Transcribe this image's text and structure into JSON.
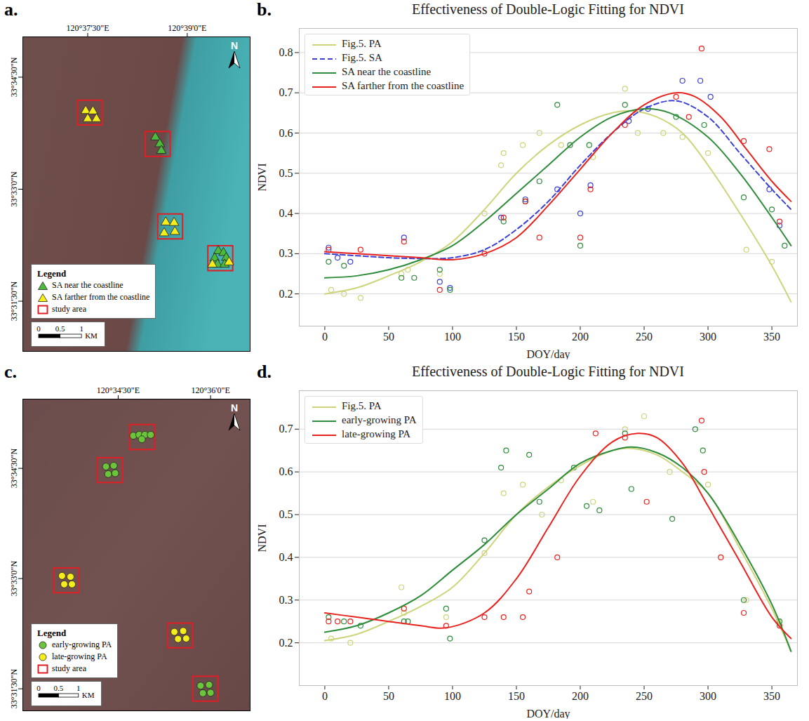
{
  "chart_data": [
    {
      "type": "map",
      "letter": "a.",
      "xlim": [
        120.6087,
        120.6658
      ],
      "ylim": [
        33.5138,
        33.584
      ],
      "xticks": [
        {
          "value": 120.625,
          "label": "120°37'30\"E"
        },
        {
          "value": 120.65,
          "label": "120°39'0\"E"
        }
      ],
      "yticks": [
        {
          "value": 33.525,
          "label": "33°31'30\"N"
        },
        {
          "value": 33.55,
          "label": "33°33'0\"N"
        },
        {
          "value": 33.575,
          "label": "33°34'30\"N"
        }
      ],
      "north": "N",
      "scale_bar": {
        "values": [
          0,
          0.5,
          1
        ],
        "unit": "KM"
      },
      "legend_title": "Legend",
      "legend": "lower left",
      "series": [
        {
          "name": "SA near the coastline",
          "color": "#4cbb3c",
          "marker": "triangle",
          "lon": [
            120.642,
            120.6431,
            120.6435,
            120.6578,
            120.6591,
            120.6569,
            120.6598,
            120.6576,
            120.6594
          ],
          "lat": [
            33.5616,
            33.5601,
            33.5586,
            33.5362,
            33.5358,
            33.5346,
            33.5347,
            33.5332,
            33.5332
          ]
        },
        {
          "name": "SA farther from the coastline",
          "color": "#f5ee1a",
          "marker": "triangle",
          "lon": [
            120.6245,
            120.6263,
            120.625,
            120.6272,
            120.6446,
            120.6467,
            120.6442,
            120.6469,
            120.6563,
            120.6605
          ],
          "lat": [
            33.5675,
            33.5674,
            33.5657,
            33.5657,
            33.5426,
            33.5425,
            33.5402,
            33.5405,
            33.5332,
            33.5337
          ]
        }
      ],
      "study_area": {
        "name": "study area",
        "color": "#e01e25",
        "marker": "square",
        "lon": [
          120.6255,
          120.6426,
          120.6457,
          120.6583
        ],
        "lat": [
          33.5671,
          33.5601,
          33.5417,
          33.5346
        ]
      }
    },
    {
      "type": "line",
      "letter": "b.",
      "title": "Effectiveness of Double-Logic Fitting for NDVI",
      "xlabel": "DOY/day",
      "ylabel": "NDVI",
      "xlim": [
        -20,
        370
      ],
      "ylim": [
        0.12,
        0.86
      ],
      "xticks": [
        0,
        50,
        100,
        150,
        200,
        250,
        300,
        350
      ],
      "yticks": [
        0.2,
        0.3,
        0.4,
        0.5,
        0.6,
        0.7,
        0.8
      ],
      "grid": "y",
      "legend": "upper left",
      "series": [
        {
          "name": "Fig.5. PA",
          "color": "#cdd47c",
          "line_style": "solid",
          "marker": "circle",
          "x": [
            0,
            25,
            50,
            75,
            100,
            125,
            150,
            175,
            200,
            225,
            240,
            260,
            280,
            300,
            325,
            350,
            365
          ],
          "values": [
            0.2,
            0.215,
            0.245,
            0.28,
            0.33,
            0.41,
            0.5,
            0.57,
            0.62,
            0.65,
            0.655,
            0.64,
            0.6,
            0.52,
            0.4,
            0.27,
            0.18
          ],
          "points_x": [
            5,
            15,
            28,
            60,
            65,
            90,
            125,
            138,
            140,
            155,
            168,
            185,
            210,
            235,
            245,
            265,
            280,
            300,
            330,
            350
          ],
          "points_values": [
            0.21,
            0.2,
            0.19,
            0.25,
            0.26,
            0.25,
            0.4,
            0.52,
            0.55,
            0.57,
            0.6,
            0.57,
            0.54,
            0.71,
            0.6,
            0.6,
            0.59,
            0.55,
            0.31,
            0.28
          ]
        },
        {
          "name": "Fig.5. SA",
          "color": "#3b40d8",
          "line_style": "dashed",
          "marker": "circle",
          "x": [
            0,
            25,
            50,
            75,
            100,
            125,
            150,
            175,
            200,
            225,
            250,
            275,
            300,
            325,
            350,
            365
          ],
          "values": [
            0.3,
            0.295,
            0.29,
            0.288,
            0.29,
            0.31,
            0.36,
            0.43,
            0.52,
            0.6,
            0.66,
            0.68,
            0.64,
            0.55,
            0.46,
            0.41
          ],
          "points_x": [
            3,
            10,
            20,
            62,
            90,
            98,
            138,
            157,
            182,
            200,
            208,
            238,
            253,
            280,
            294,
            302,
            348,
            356
          ],
          "points_values": [
            0.315,
            0.29,
            0.28,
            0.34,
            0.23,
            0.215,
            0.39,
            0.435,
            0.46,
            0.4,
            0.47,
            0.63,
            0.66,
            0.73,
            0.73,
            0.69,
            0.46,
            0.37
          ]
        },
        {
          "name": "SA near the coastline",
          "color": "#2e8b3a",
          "line_style": "solid",
          "marker": "circle",
          "x": [
            0,
            25,
            50,
            75,
            100,
            125,
            150,
            175,
            200,
            225,
            250,
            270,
            300,
            325,
            350,
            365
          ],
          "values": [
            0.24,
            0.245,
            0.26,
            0.285,
            0.32,
            0.38,
            0.45,
            0.52,
            0.59,
            0.64,
            0.66,
            0.65,
            0.59,
            0.5,
            0.39,
            0.32
          ],
          "points_x": [
            3,
            15,
            60,
            70,
            90,
            98,
            140,
            157,
            168,
            182,
            192,
            200,
            207,
            235,
            275,
            297,
            328,
            350,
            360
          ],
          "points_values": [
            0.28,
            0.27,
            0.24,
            0.24,
            0.26,
            0.21,
            0.38,
            0.43,
            0.48,
            0.67,
            0.57,
            0.32,
            0.57,
            0.67,
            0.64,
            0.62,
            0.44,
            0.41,
            0.32
          ]
        },
        {
          "name": "SA farther from the coastline",
          "color": "#e8231f",
          "line_style": "solid",
          "marker": "circle",
          "x": [
            0,
            25,
            50,
            75,
            100,
            125,
            150,
            175,
            200,
            225,
            250,
            275,
            290,
            310,
            330,
            350,
            365
          ],
          "values": [
            0.305,
            0.3,
            0.295,
            0.29,
            0.285,
            0.3,
            0.34,
            0.42,
            0.51,
            0.6,
            0.67,
            0.7,
            0.69,
            0.64,
            0.56,
            0.48,
            0.43
          ],
          "points_x": [
            3,
            28,
            62,
            90,
            125,
            140,
            157,
            168,
            200,
            208,
            235,
            275,
            285,
            295,
            328,
            348,
            356
          ],
          "points_values": [
            0.31,
            0.31,
            0.33,
            0.21,
            0.3,
            0.39,
            0.43,
            0.34,
            0.34,
            0.46,
            0.62,
            0.69,
            0.64,
            0.81,
            0.58,
            0.56,
            0.38
          ]
        }
      ]
    },
    {
      "type": "map",
      "letter": "c.",
      "xlim": [
        120.5492,
        120.6107
      ],
      "ylim": [
        33.52,
        33.5907
      ],
      "xticks": [
        {
          "value": 120.575,
          "label": "120°34'30\"E"
        },
        {
          "value": 120.6,
          "label": "120°36'0\"E"
        }
      ],
      "yticks": [
        {
          "value": 33.525,
          "label": "33°31'30\"N"
        },
        {
          "value": 33.55,
          "label": "33°33'0\"N"
        },
        {
          "value": 33.575,
          "label": "33°34'30\"N"
        }
      ],
      "north": "N",
      "scale_bar": {
        "values": [
          0,
          0.5,
          1
        ],
        "unit": "KM"
      },
      "legend_title": "Legend",
      "legend": "lower left",
      "series": [
        {
          "name": "early-growing PA",
          "color": "#6cc43c",
          "marker": "circle",
          "lon": [
            120.5791,
            120.5807,
            120.5822,
            120.5838,
            120.5814,
            120.5717,
            120.5738,
            120.5723,
            120.5742,
            120.5973,
            120.5996,
            120.5979,
            120.6
          ],
          "lat": [
            33.5824,
            33.5826,
            33.5826,
            33.5826,
            33.5816,
            33.5754,
            33.5756,
            33.5737,
            33.5739,
            33.5257,
            33.5259,
            33.524,
            33.5241
          ]
        },
        {
          "name": "late-growing PA",
          "color": "#f5ee1a",
          "marker": "circle",
          "lon": [
            120.5598,
            120.5621,
            120.5604,
            120.5625,
            120.5902,
            120.5926,
            120.5912,
            120.5934
          ],
          "lat": [
            33.5506,
            33.5504,
            33.5487,
            33.5487,
            33.5379,
            33.5381,
            33.5363,
            33.5364
          ]
        }
      ],
      "study_area": {
        "name": "study area",
        "color": "#e01e25",
        "marker": "square",
        "lon": [
          120.5814,
          120.5727,
          120.5609,
          120.5918,
          120.5986
        ],
        "lat": [
          33.5821,
          33.5746,
          33.5496,
          33.5371,
          33.525
        ]
      }
    },
    {
      "type": "line",
      "letter": "d.",
      "title": "Effectiveness of Double-Logic Fitting for NDVI",
      "xlabel": "DOY/day",
      "ylabel": "NDVI",
      "xlim": [
        -20,
        370
      ],
      "ylim": [
        0.1,
        0.79
      ],
      "xticks": [
        0,
        50,
        100,
        150,
        200,
        250,
        300,
        350
      ],
      "yticks": [
        0.2,
        0.3,
        0.4,
        0.5,
        0.6,
        0.7
      ],
      "grid": "y",
      "legend": "upper left",
      "series": [
        {
          "name": "Fig.5. PA",
          "color": "#cdd47c",
          "line_style": "solid",
          "marker": "circle",
          "x": [
            0,
            25,
            50,
            75,
            100,
            125,
            150,
            175,
            200,
            225,
            240,
            260,
            280,
            300,
            325,
            350,
            365
          ],
          "values": [
            0.205,
            0.22,
            0.25,
            0.285,
            0.33,
            0.41,
            0.5,
            0.565,
            0.615,
            0.65,
            0.655,
            0.64,
            0.6,
            0.55,
            0.42,
            0.28,
            0.18
          ],
          "points_x": [
            5,
            20,
            60,
            62,
            95,
            125,
            140,
            155,
            170,
            185,
            210,
            235,
            250,
            270,
            300,
            330,
            355
          ],
          "points_values": [
            0.21,
            0.2,
            0.33,
            0.27,
            0.26,
            0.41,
            0.55,
            0.57,
            0.5,
            0.58,
            0.53,
            0.7,
            0.73,
            0.6,
            0.57,
            0.3,
            0.25
          ]
        },
        {
          "name": "early-growing PA",
          "color": "#2e8b3a",
          "line_style": "solid",
          "marker": "circle",
          "x": [
            0,
            25,
            50,
            75,
            100,
            125,
            150,
            175,
            200,
            225,
            240,
            260,
            280,
            300,
            325,
            350,
            365
          ],
          "values": [
            0.225,
            0.24,
            0.27,
            0.31,
            0.37,
            0.43,
            0.5,
            0.56,
            0.62,
            0.65,
            0.658,
            0.645,
            0.61,
            0.55,
            0.43,
            0.29,
            0.18
          ],
          "points_x": [
            3,
            15,
            28,
            62,
            65,
            95,
            98,
            125,
            138,
            142,
            160,
            168,
            195,
            205,
            215,
            235,
            240,
            272,
            290,
            296,
            328,
            356
          ],
          "points_values": [
            0.26,
            0.25,
            0.24,
            0.25,
            0.25,
            0.28,
            0.21,
            0.44,
            0.61,
            0.65,
            0.64,
            0.53,
            0.61,
            0.52,
            0.51,
            0.69,
            0.56,
            0.49,
            0.7,
            0.65,
            0.3,
            0.25
          ]
        },
        {
          "name": "late-growing PA",
          "color": "#e8231f",
          "line_style": "solid",
          "marker": "circle",
          "x": [
            0,
            25,
            50,
            75,
            95,
            125,
            150,
            175,
            200,
            225,
            245,
            260,
            280,
            300,
            325,
            350,
            365
          ],
          "values": [
            0.27,
            0.26,
            0.25,
            0.24,
            0.235,
            0.27,
            0.35,
            0.47,
            0.59,
            0.67,
            0.69,
            0.68,
            0.62,
            0.52,
            0.39,
            0.26,
            0.21
          ],
          "points_x": [
            3,
            10,
            20,
            62,
            95,
            125,
            140,
            155,
            160,
            182,
            212,
            235,
            252,
            295,
            297,
            310,
            328,
            356
          ],
          "points_values": [
            0.25,
            0.25,
            0.25,
            0.28,
            0.24,
            0.26,
            0.26,
            0.26,
            0.32,
            0.4,
            0.69,
            0.68,
            0.53,
            0.72,
            0.6,
            0.4,
            0.27,
            0.24
          ]
        }
      ]
    }
  ]
}
